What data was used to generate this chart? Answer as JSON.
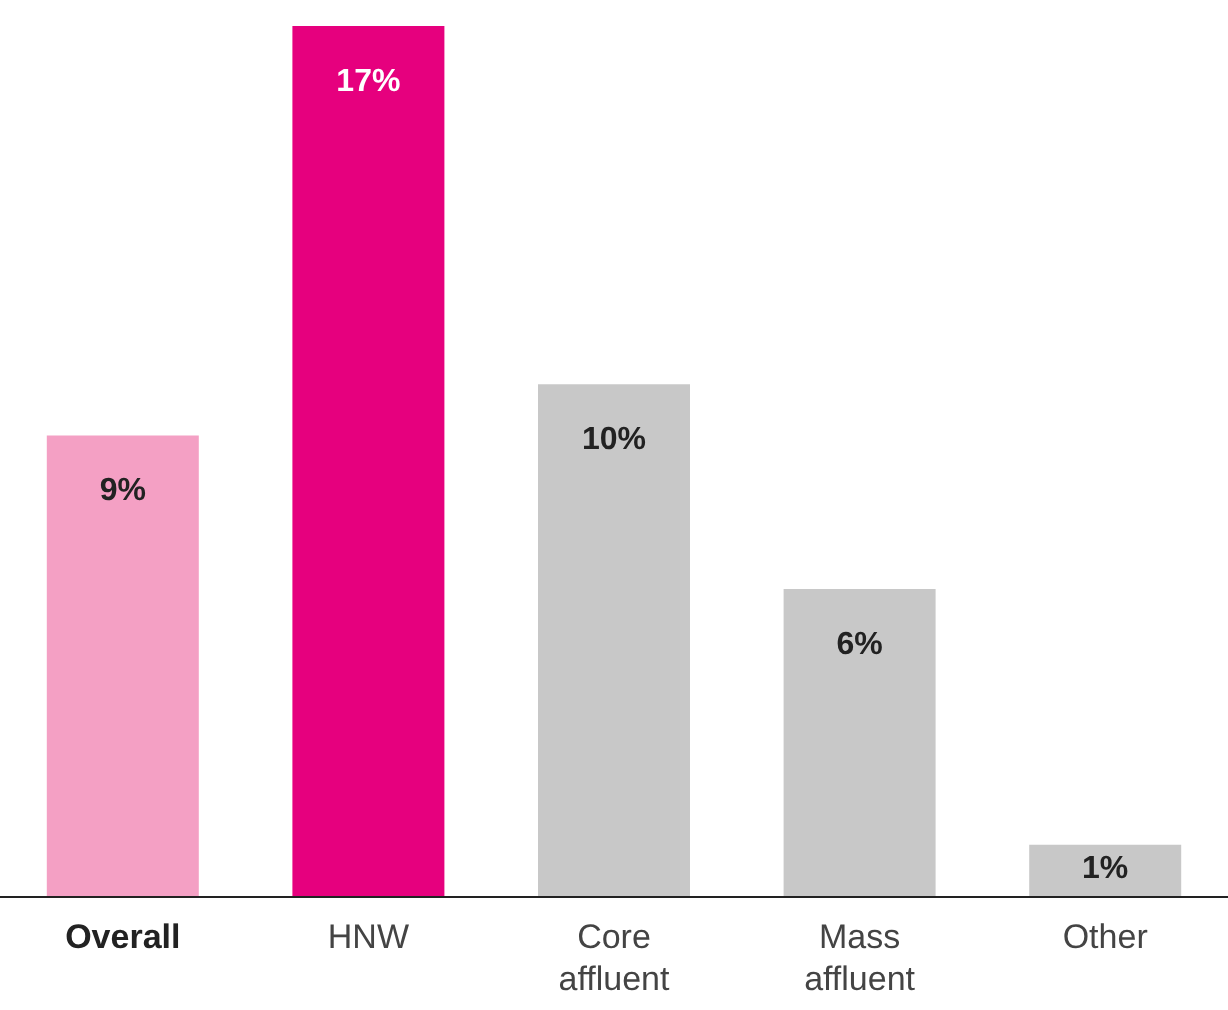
{
  "chart_data": {
    "type": "bar",
    "categories": [
      "Overall",
      "HNW",
      "Core\naffluent",
      "Mass\naffluent",
      "Other"
    ],
    "values": [
      9,
      17,
      10,
      6,
      1
    ],
    "value_labels": [
      "9%",
      "17%",
      "10%",
      "6%",
      "1%"
    ],
    "colors": [
      "#f4a0c4",
      "#e6007e",
      "#c8c8c8",
      "#c8c8c8",
      "#c8c8c8"
    ]
  }
}
